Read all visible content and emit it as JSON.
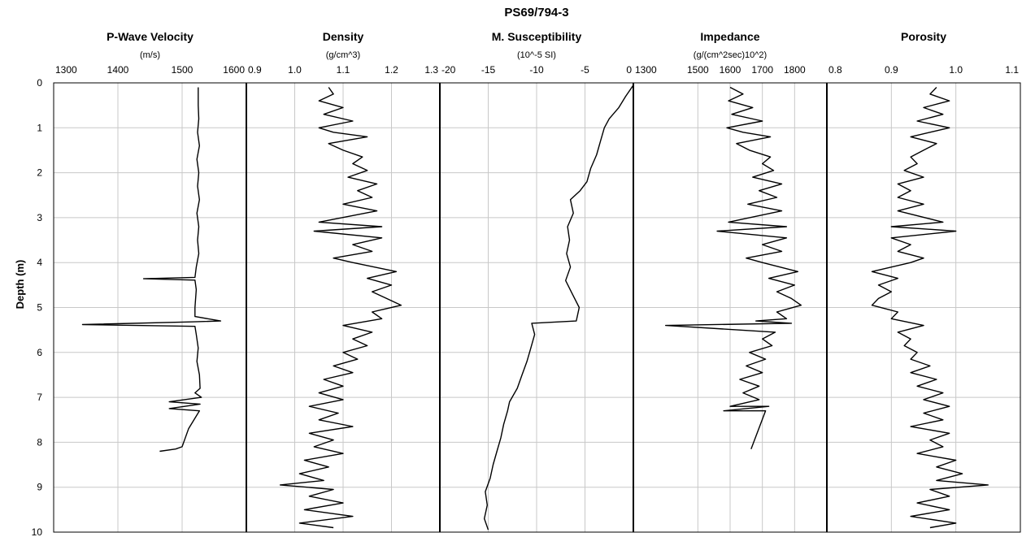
{
  "chart_data": {
    "type": "line",
    "title": "PS69/794-3",
    "ylabel": "Depth (m)",
    "ylim": [
      0,
      10
    ],
    "y_inverted": true,
    "y_ticks": [
      "0",
      "1",
      "2",
      "3",
      "4",
      "5",
      "6",
      "7",
      "8",
      "9",
      "10"
    ],
    "grid": true,
    "panels": [
      {
        "name": "P-Wave Velocity",
        "unit": "(m/s)",
        "xlim": [
          1300,
          1600
        ],
        "x_ticks": [
          "1300",
          "1400",
          "1500",
          "1600"
        ],
        "points": [
          [
            1525,
            0.1
          ],
          [
            1525,
            0.5
          ],
          [
            1526,
            0.8
          ],
          [
            1524,
            1.1
          ],
          [
            1527,
            1.4
          ],
          [
            1523,
            1.7
          ],
          [
            1526,
            2.0
          ],
          [
            1524,
            2.3
          ],
          [
            1527,
            2.6
          ],
          [
            1523,
            2.9
          ],
          [
            1526,
            3.2
          ],
          [
            1524,
            3.5
          ],
          [
            1526,
            3.8
          ],
          [
            1522,
            4.1
          ],
          [
            1520,
            4.33
          ],
          [
            1440,
            4.36
          ],
          [
            1520,
            4.39
          ],
          [
            1522,
            4.6
          ],
          [
            1520,
            5.0
          ],
          [
            1520,
            5.2
          ],
          [
            1560,
            5.3
          ],
          [
            1515,
            5.32
          ],
          [
            1345,
            5.38
          ],
          [
            1520,
            5.42
          ],
          [
            1522,
            5.6
          ],
          [
            1525,
            5.9
          ],
          [
            1523,
            6.2
          ],
          [
            1527,
            6.5
          ],
          [
            1528,
            6.8
          ],
          [
            1520,
            6.9
          ],
          [
            1530,
            7.0
          ],
          [
            1480,
            7.1
          ],
          [
            1528,
            7.15
          ],
          [
            1480,
            7.25
          ],
          [
            1527,
            7.3
          ],
          [
            1510,
            7.7
          ],
          [
            1500,
            8.1
          ],
          [
            1490,
            8.15
          ],
          [
            1465,
            8.2
          ]
        ]
      },
      {
        "name": "Density",
        "unit": "(g/cm^3)",
        "xlim": [
          0.9,
          1.3
        ],
        "x_ticks": [
          "0.9",
          "1.0",
          "1.1",
          "1.2",
          "1.3"
        ],
        "points": [
          [
            1.07,
            0.1
          ],
          [
            1.08,
            0.25
          ],
          [
            1.05,
            0.4
          ],
          [
            1.1,
            0.55
          ],
          [
            1.06,
            0.7
          ],
          [
            1.12,
            0.85
          ],
          [
            1.05,
            1.0
          ],
          [
            1.08,
            1.1
          ],
          [
            1.15,
            1.2
          ],
          [
            1.07,
            1.35
          ],
          [
            1.1,
            1.5
          ],
          [
            1.14,
            1.65
          ],
          [
            1.12,
            1.8
          ],
          [
            1.15,
            1.95
          ],
          [
            1.11,
            2.1
          ],
          [
            1.17,
            2.25
          ],
          [
            1.13,
            2.4
          ],
          [
            1.16,
            2.55
          ],
          [
            1.1,
            2.7
          ],
          [
            1.17,
            2.85
          ],
          [
            1.05,
            3.1
          ],
          [
            1.18,
            3.2
          ],
          [
            1.04,
            3.3
          ],
          [
            1.18,
            3.45
          ],
          [
            1.12,
            3.6
          ],
          [
            1.16,
            3.75
          ],
          [
            1.08,
            3.9
          ],
          [
            1.12,
            4.0
          ],
          [
            1.21,
            4.2
          ],
          [
            1.15,
            4.35
          ],
          [
            1.2,
            4.5
          ],
          [
            1.16,
            4.65
          ],
          [
            1.19,
            4.8
          ],
          [
            1.22,
            4.95
          ],
          [
            1.16,
            5.1
          ],
          [
            1.18,
            5.25
          ],
          [
            1.1,
            5.4
          ],
          [
            1.16,
            5.55
          ],
          [
            1.12,
            5.7
          ],
          [
            1.15,
            5.85
          ],
          [
            1.1,
            6.0
          ],
          [
            1.13,
            6.15
          ],
          [
            1.08,
            6.3
          ],
          [
            1.12,
            6.45
          ],
          [
            1.06,
            6.6
          ],
          [
            1.1,
            6.75
          ],
          [
            1.05,
            6.9
          ],
          [
            1.1,
            7.05
          ],
          [
            1.03,
            7.2
          ],
          [
            1.09,
            7.35
          ],
          [
            1.05,
            7.5
          ],
          [
            1.12,
            7.65
          ],
          [
            1.03,
            7.8
          ],
          [
            1.08,
            7.95
          ],
          [
            1.04,
            8.1
          ],
          [
            1.1,
            8.25
          ],
          [
            1.02,
            8.4
          ],
          [
            1.07,
            8.55
          ],
          [
            1.01,
            8.7
          ],
          [
            1.06,
            8.85
          ],
          [
            0.97,
            8.95
          ],
          [
            1.08,
            9.05
          ],
          [
            1.03,
            9.2
          ],
          [
            1.1,
            9.35
          ],
          [
            1.02,
            9.5
          ],
          [
            1.12,
            9.65
          ],
          [
            1.01,
            9.8
          ],
          [
            1.08,
            9.9
          ]
        ]
      },
      {
        "name": "M. Susceptibility",
        "unit": "(10^-5 SI)",
        "xlim": [
          -20,
          0
        ],
        "x_ticks": [
          "-20",
          "-15",
          "-10",
          "-5",
          "0"
        ],
        "points": [
          [
            0,
            0.05
          ],
          [
            -0.8,
            0.3
          ],
          [
            -1.5,
            0.55
          ],
          [
            -2.5,
            0.8
          ],
          [
            -3.0,
            1.0
          ],
          [
            -3.4,
            1.3
          ],
          [
            -3.8,
            1.6
          ],
          [
            -4.4,
            1.9
          ],
          [
            -4.8,
            2.2
          ],
          [
            -5.5,
            2.4
          ],
          [
            -6.5,
            2.6
          ],
          [
            -6.2,
            2.9
          ],
          [
            -6.8,
            3.2
          ],
          [
            -6.6,
            3.5
          ],
          [
            -6.9,
            3.8
          ],
          [
            -6.5,
            4.1
          ],
          [
            -7.0,
            4.4
          ],
          [
            -6.3,
            4.7
          ],
          [
            -5.6,
            5.0
          ],
          [
            -5.9,
            5.3
          ],
          [
            -10.5,
            5.35
          ],
          [
            -10.2,
            5.6
          ],
          [
            -10.6,
            5.9
          ],
          [
            -11.0,
            6.2
          ],
          [
            -11.5,
            6.5
          ],
          [
            -12.0,
            6.8
          ],
          [
            -12.8,
            7.1
          ],
          [
            -13.0,
            7.3
          ],
          [
            -13.4,
            7.6
          ],
          [
            -13.7,
            7.9
          ],
          [
            -14.1,
            8.2
          ],
          [
            -14.5,
            8.5
          ],
          [
            -14.8,
            8.8
          ],
          [
            -15.3,
            9.1
          ],
          [
            -15.1,
            9.4
          ],
          [
            -15.4,
            9.7
          ],
          [
            -15.0,
            9.95
          ]
        ]
      },
      {
        "name": "Impedance",
        "unit": "(g/(cm^2sec)10^2)",
        "xlim": [
          1300,
          1900
        ],
        "x_ticks": [
          "1300",
          "1500",
          "1600",
          "1700",
          "1800"
        ],
        "points": [
          [
            1600,
            0.1
          ],
          [
            1640,
            0.25
          ],
          [
            1595,
            0.4
          ],
          [
            1670,
            0.55
          ],
          [
            1605,
            0.7
          ],
          [
            1700,
            0.85
          ],
          [
            1590,
            1.0
          ],
          [
            1640,
            1.1
          ],
          [
            1725,
            1.2
          ],
          [
            1620,
            1.35
          ],
          [
            1660,
            1.5
          ],
          [
            1725,
            1.65
          ],
          [
            1700,
            1.8
          ],
          [
            1735,
            1.95
          ],
          [
            1670,
            2.1
          ],
          [
            1760,
            2.25
          ],
          [
            1690,
            2.4
          ],
          [
            1745,
            2.55
          ],
          [
            1655,
            2.7
          ],
          [
            1760,
            2.85
          ],
          [
            1595,
            3.1
          ],
          [
            1775,
            3.2
          ],
          [
            1560,
            3.3
          ],
          [
            1775,
            3.45
          ],
          [
            1700,
            3.6
          ],
          [
            1760,
            3.75
          ],
          [
            1650,
            3.9
          ],
          [
            1700,
            4.0
          ],
          [
            1810,
            4.2
          ],
          [
            1720,
            4.35
          ],
          [
            1800,
            4.5
          ],
          [
            1745,
            4.65
          ],
          [
            1790,
            4.8
          ],
          [
            1820,
            4.95
          ],
          [
            1745,
            5.1
          ],
          [
            1775,
            5.25
          ],
          [
            1680,
            5.3
          ],
          [
            1790,
            5.35
          ],
          [
            1400,
            5.4
          ],
          [
            1740,
            5.55
          ],
          [
            1700,
            5.7
          ],
          [
            1730,
            5.85
          ],
          [
            1660,
            6.0
          ],
          [
            1710,
            6.15
          ],
          [
            1650,
            6.3
          ],
          [
            1700,
            6.45
          ],
          [
            1630,
            6.6
          ],
          [
            1690,
            6.75
          ],
          [
            1640,
            6.9
          ],
          [
            1690,
            7.05
          ],
          [
            1600,
            7.2
          ],
          [
            1720,
            7.2
          ],
          [
            1580,
            7.3
          ],
          [
            1710,
            7.3
          ],
          [
            1665,
            8.15
          ]
        ]
      },
      {
        "name": "Porosity",
        "unit": "",
        "xlim": [
          0.8,
          1.1
        ],
        "x_ticks": [
          "0.8",
          "0.9",
          "1.0",
          "1.1"
        ],
        "points": [
          [
            0.97,
            0.1
          ],
          [
            0.96,
            0.25
          ],
          [
            0.99,
            0.4
          ],
          [
            0.95,
            0.55
          ],
          [
            0.98,
            0.7
          ],
          [
            0.94,
            0.85
          ],
          [
            0.99,
            1.0
          ],
          [
            0.96,
            1.1
          ],
          [
            0.93,
            1.2
          ],
          [
            0.97,
            1.35
          ],
          [
            0.95,
            1.5
          ],
          [
            0.93,
            1.65
          ],
          [
            0.94,
            1.8
          ],
          [
            0.92,
            1.95
          ],
          [
            0.95,
            2.1
          ],
          [
            0.91,
            2.25
          ],
          [
            0.93,
            2.4
          ],
          [
            0.91,
            2.55
          ],
          [
            0.95,
            2.7
          ],
          [
            0.91,
            2.85
          ],
          [
            0.98,
            3.1
          ],
          [
            0.9,
            3.2
          ],
          [
            1.0,
            3.3
          ],
          [
            0.9,
            3.45
          ],
          [
            0.93,
            3.6
          ],
          [
            0.91,
            3.75
          ],
          [
            0.95,
            3.9
          ],
          [
            0.93,
            4.0
          ],
          [
            0.87,
            4.2
          ],
          [
            0.91,
            4.35
          ],
          [
            0.88,
            4.5
          ],
          [
            0.9,
            4.65
          ],
          [
            0.88,
            4.8
          ],
          [
            0.87,
            4.95
          ],
          [
            0.91,
            5.1
          ],
          [
            0.9,
            5.25
          ],
          [
            0.95,
            5.4
          ],
          [
            0.91,
            5.55
          ],
          [
            0.93,
            5.7
          ],
          [
            0.92,
            5.85
          ],
          [
            0.94,
            6.0
          ],
          [
            0.93,
            6.15
          ],
          [
            0.96,
            6.3
          ],
          [
            0.93,
            6.45
          ],
          [
            0.97,
            6.6
          ],
          [
            0.94,
            6.75
          ],
          [
            0.98,
            6.9
          ],
          [
            0.95,
            7.05
          ],
          [
            0.99,
            7.2
          ],
          [
            0.95,
            7.35
          ],
          [
            0.98,
            7.5
          ],
          [
            0.93,
            7.65
          ],
          [
            0.99,
            7.8
          ],
          [
            0.96,
            7.95
          ],
          [
            0.98,
            8.1
          ],
          [
            0.94,
            8.25
          ],
          [
            1.0,
            8.4
          ],
          [
            0.97,
            8.55
          ],
          [
            1.01,
            8.7
          ],
          [
            0.97,
            8.85
          ],
          [
            1.05,
            8.95
          ],
          [
            0.96,
            9.05
          ],
          [
            0.99,
            9.2
          ],
          [
            0.94,
            9.35
          ],
          [
            0.99,
            9.5
          ],
          [
            0.93,
            9.65
          ],
          [
            1.0,
            9.8
          ],
          [
            0.96,
            9.9
          ]
        ]
      }
    ]
  }
}
